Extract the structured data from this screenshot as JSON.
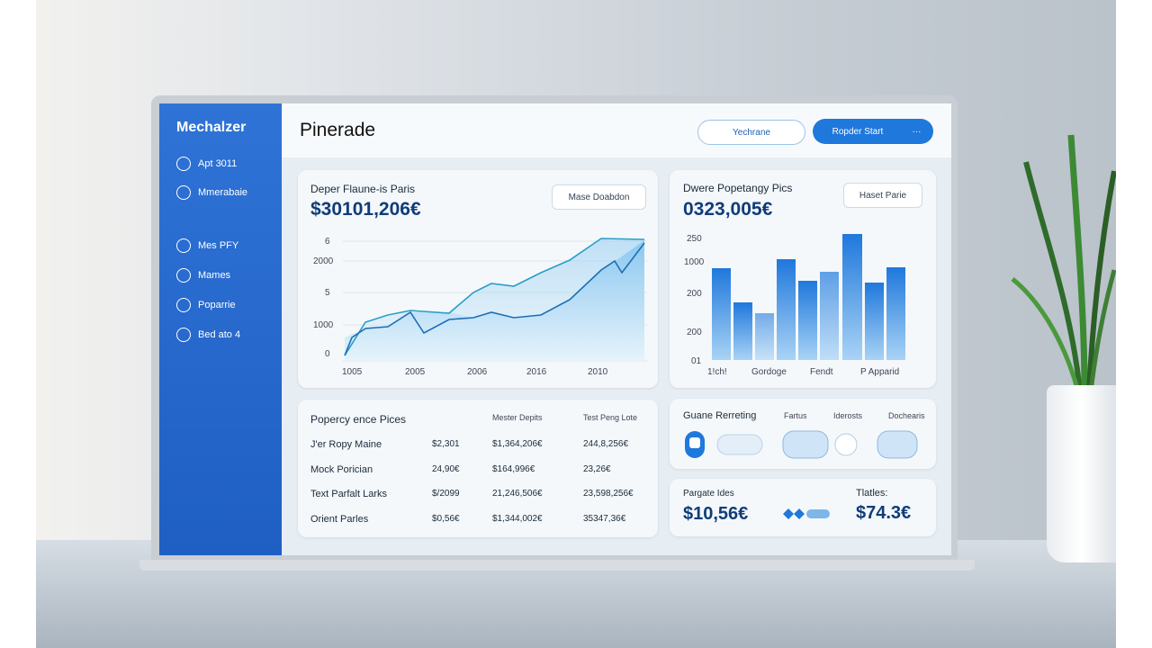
{
  "sidebar": {
    "brand": "Mechalzer",
    "nav": [
      "Apt 3011",
      "Mmerabaie",
      "Mes PFY",
      "Mames",
      "Poparrie",
      "Bed ato 4"
    ]
  },
  "header": {
    "title": "Pinerade",
    "buttons": [
      "Yechrane",
      "Ropder Start",
      "···"
    ]
  },
  "line_card": {
    "title": "Deper Flaune-is Paris",
    "value": "$30101,206€",
    "button": "Mase Doabdon",
    "y_labels": [
      "6",
      "2000",
      "5",
      "1000",
      "0"
    ],
    "x_labels": [
      "1005",
      "2005",
      "2006",
      "2016",
      "2010"
    ]
  },
  "bar_card": {
    "title": "Dwere Popetangy Pics",
    "value": "0323,005€",
    "button": "Haset Parie",
    "y_labels": [
      "250",
      "1000",
      "200",
      "200",
      "01"
    ],
    "x_labels": [
      "1!ch!",
      "Gordoge",
      "Fendt",
      "P Apparid"
    ]
  },
  "table": {
    "title": "Popercy ence Pices",
    "headers": [
      "Mester Depits",
      "Test Peng Lote"
    ],
    "rows": [
      [
        "J'er Ropy Maine",
        "$2,301",
        "$1,364,206€",
        "244,8,256€"
      ],
      [
        "Mock Porician",
        "24,90€",
        "$164,996€",
        "23,26€"
      ],
      [
        "Text Parfalt Larks",
        "$/2099",
        "21,246,506€",
        "23,598,256€"
      ],
      [
        "Orient Parles",
        "$0,56€",
        "$1,344,002€",
        "35347,36€"
      ]
    ]
  },
  "reporting": {
    "title": "Guane Rerreting",
    "tabs": [
      "Fartus",
      "Iderosts",
      "Dochearis"
    ]
  },
  "summary": {
    "label": "Pargate Ides",
    "value": "$10,56€",
    "label2": "Tlatles:",
    "value2": "$74.3€"
  }
}
